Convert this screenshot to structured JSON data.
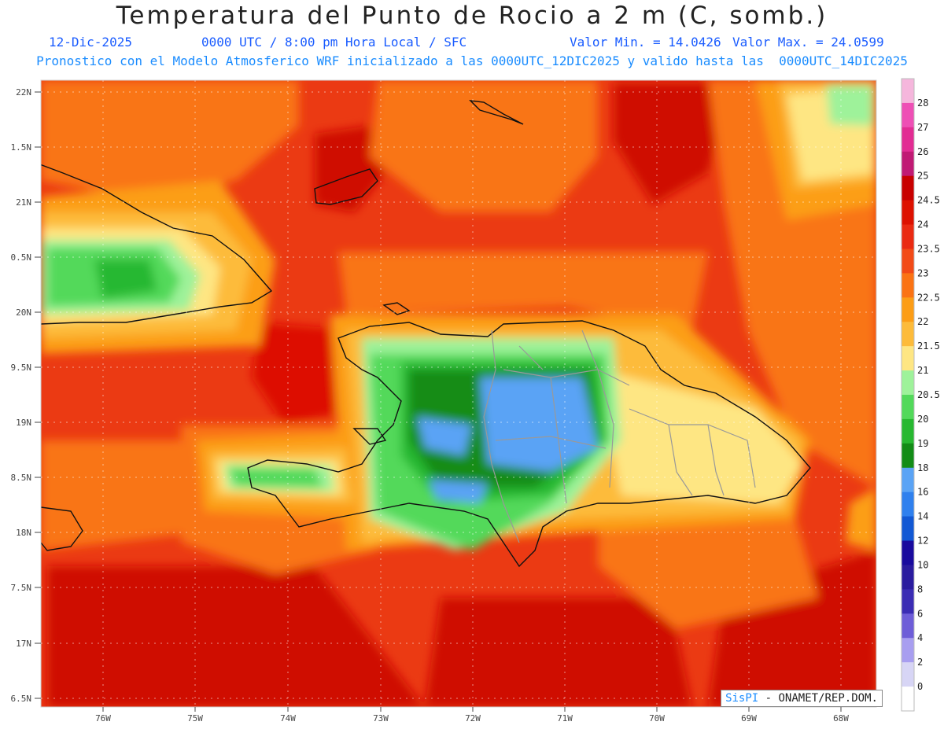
{
  "header": {
    "title": "Temperatura del Punto de Rocio a 2 m (C, somb.)",
    "date": "12-Dic-2025",
    "time": "0000 UTC / 8:00 pm Hora Local / SFC",
    "min_label": "Valor Min. = 14.0426",
    "max_label": "Valor Max. = 24.0599",
    "subtitle": "Pronostico con el Modelo Atmosferico WRF inicializado a las 0000UTC_12DIC2025 y valido hasta las  0000UTC_14DIC2025"
  },
  "axes": {
    "lat_labels": [
      "22N",
      "1.5N",
      "21N",
      "0.5N",
      "20N",
      "9.5N",
      "19N",
      "8.5N",
      "18N",
      "7.5N",
      "17N",
      "6.5N"
    ],
    "lon_labels": [
      "76W",
      "75W",
      "74W",
      "73W",
      "72W",
      "71W",
      "70W",
      "69W",
      "68W"
    ]
  },
  "colorbar": {
    "labels": [
      "28",
      "27",
      "26",
      "25",
      "24.5",
      "24",
      "23.5",
      "23",
      "22.5",
      "22",
      "21.5",
      "21",
      "20.5",
      "20",
      "19",
      "18",
      "16",
      "14",
      "12",
      "10",
      "8",
      "6",
      "4",
      "2",
      "0"
    ],
    "colors": [
      "#f5b6dc",
      "#ee4fb5",
      "#e22c93",
      "#c01a74",
      "#c80000",
      "#dd1100",
      "#ea2a12",
      "#f24a17",
      "#fb7314",
      "#fc9d16",
      "#fdbb3a",
      "#fee683",
      "#9ef29a",
      "#52d95a",
      "#27b830",
      "#128c16",
      "#5aa3f5",
      "#2f80ee",
      "#1258d4",
      "#190a9e",
      "#2a1b9f",
      "#3b2cb4",
      "#6e5dd8",
      "#a89ef0",
      "#d7d5f5",
      "#ffffff"
    ]
  },
  "credit": {
    "brand": "SisPI",
    "org": " - ONAMET/REP.DOM."
  },
  "colors": {
    "bg": "#eb3a13",
    "dark_red": "#cf0f00",
    "orange": "#f97414",
    "light_orange": "#fc9e17",
    "tan": "#fdbb3a",
    "yellow": "#fee683",
    "light_green": "#9ef29a",
    "green": "#52d95a",
    "mid_green": "#27b830",
    "dark_green": "#128c16",
    "light_blue": "#5aa3f5"
  }
}
